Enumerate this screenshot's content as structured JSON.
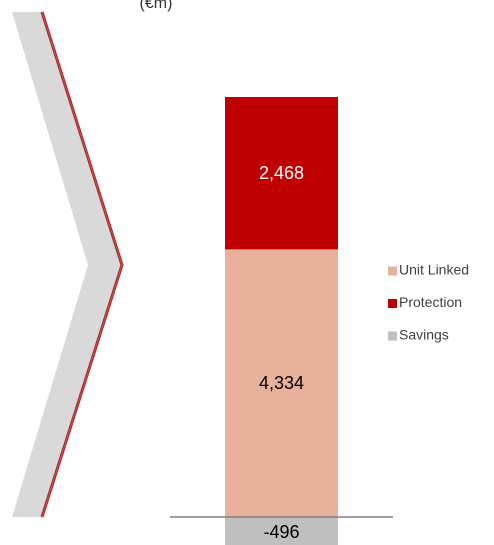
{
  "chart_data": {
    "type": "stacked-bar",
    "subtitle": "(€m)",
    "categories": [
      null
    ],
    "series": [
      {
        "name": "Unit Linked",
        "color": "#e8b19b",
        "values": [
          4334
        ],
        "value_labels": [
          "4,334"
        ],
        "label_color": "#000000"
      },
      {
        "name": "Protection",
        "color": "#c00000",
        "values": [
          2468
        ],
        "value_labels": [
          "2,468"
        ],
        "label_color": "#ffffff"
      },
      {
        "name": "Savings",
        "color": "#bfbfbf",
        "values": [
          -496
        ],
        "label_color": "#000000"
      }
    ],
    "legend": "right"
  }
}
